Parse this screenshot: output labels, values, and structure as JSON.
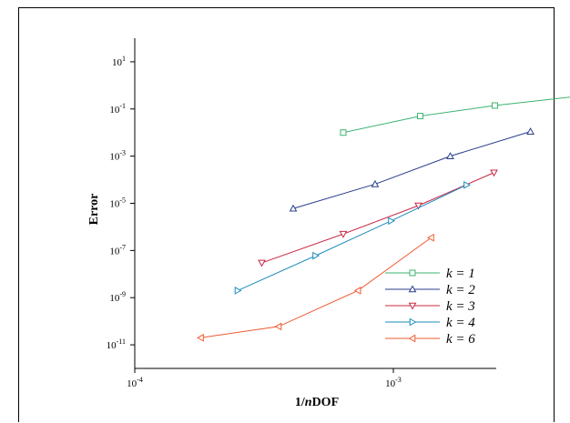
{
  "chart_data": {
    "type": "line",
    "xlabel": "1/nDOF",
    "ylabel": "Error",
    "xscale": "log",
    "yscale": "log",
    "xlim": [
      0.0001,
      0.0025
    ],
    "ylim": [
      1e-12,
      100
    ],
    "x_ticks": [
      {
        "value": 0.0001,
        "base": "10",
        "exp": "-4"
      },
      {
        "value": 0.001,
        "base": "10",
        "exp": "-3"
      }
    ],
    "y_ticks": [
      {
        "value": 10,
        "base": "10",
        "exp": "1"
      },
      {
        "value": 0.1,
        "base": "10",
        "exp": "-1"
      },
      {
        "value": 0.001,
        "base": "10",
        "exp": "-3"
      },
      {
        "value": 1e-05,
        "base": "10",
        "exp": "-5"
      },
      {
        "value": 1e-07,
        "base": "10",
        "exp": "-7"
      },
      {
        "value": 1e-09,
        "base": "10",
        "exp": "-9"
      },
      {
        "value": 1e-11,
        "base": "10",
        "exp": "-11"
      }
    ],
    "legend_position": "bottom-right",
    "grid": false,
    "series": [
      {
        "name": "k = 1",
        "color": "#3cb371",
        "marker": "square",
        "x": [
          0.00064,
          0.00127,
          0.00247,
          0.00519
        ],
        "y": [
          0.01,
          0.05,
          0.14,
          0.35
        ]
      },
      {
        "name": "k = 2",
        "color": "#283c8c",
        "marker": "triangle-up",
        "x": [
          0.00041,
          0.00085,
          0.00166,
          0.00339
        ],
        "y": [
          6e-06,
          6.5e-05,
          0.001,
          0.011
        ]
      },
      {
        "name": "k = 3",
        "color": "#c82846",
        "marker": "triangle-down",
        "x": [
          0.00031,
          0.00064,
          0.00125,
          0.00245
        ],
        "y": [
          3e-08,
          5e-07,
          8e-06,
          0.0002
        ]
      },
      {
        "name": "k = 4",
        "color": "#1e8cbe",
        "marker": "triangle-right",
        "x": [
          0.00025,
          0.0005,
          0.00098,
          0.00192
        ],
        "y": [
          2e-09,
          6e-08,
          1.8e-06,
          6e-05
        ]
      },
      {
        "name": "k = 6",
        "color": "#f05a32",
        "marker": "triangle-left",
        "x": [
          0.00018,
          0.00036,
          0.00073,
          0.0014
        ],
        "y": [
          2e-11,
          6e-11,
          2e-09,
          3.5e-07
        ]
      }
    ]
  }
}
